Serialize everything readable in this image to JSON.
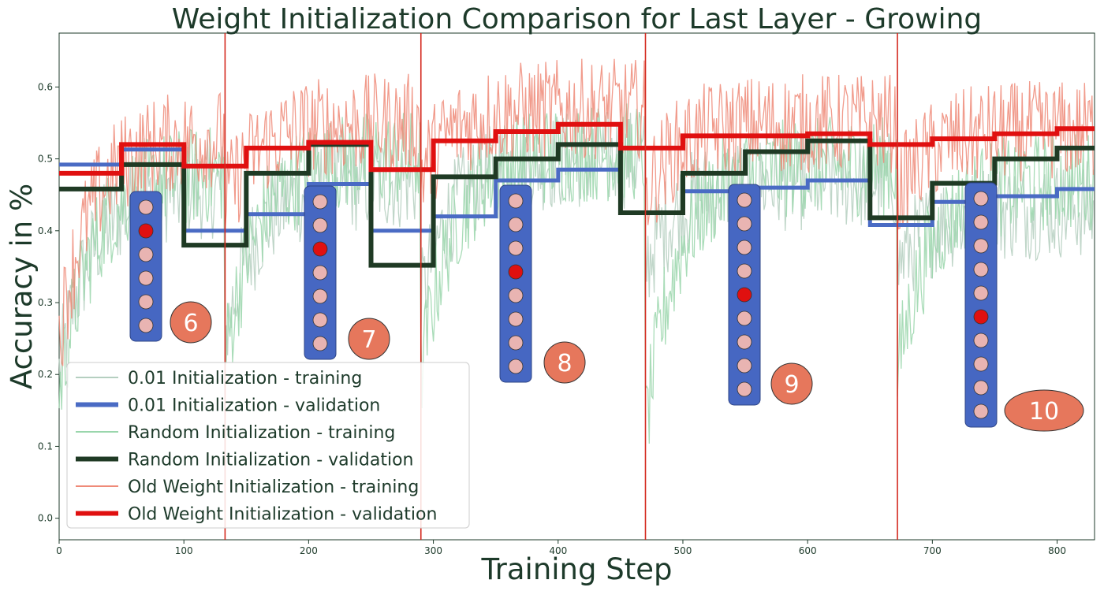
{
  "chart_data": {
    "type": "line",
    "title": "Weight Initialization Comparison for Last Layer - Growing",
    "xlabel": "Training Step",
    "ylabel": "Accuracy in %",
    "xlim": [
      0,
      830
    ],
    "ylim": [
      -0.03,
      0.675
    ],
    "xticks": [
      0,
      100,
      200,
      300,
      400,
      500,
      600,
      700,
      800
    ],
    "yticks": [
      0.0,
      0.1,
      0.2,
      0.3,
      0.4,
      0.5,
      0.6
    ],
    "grid": false,
    "legend_position": "lower-left",
    "growth_events": [
      133,
      290,
      470,
      672
    ],
    "colors": {
      "init001_train": "#b5cfc0",
      "init001_val": "#4a6bc4",
      "random_train": "#9ad6ac",
      "random_val": "#1f3a24",
      "old_train": "#ef8a78",
      "old_val": "#e01010",
      "event_line": "#d42a1f",
      "net_box": "#4667c2",
      "neuron": "#e9b4b2",
      "neuron_active": "#e01010",
      "badge": "#e6775c"
    },
    "series": [
      {
        "name": "0.01 Initialization - training",
        "kind": "training",
        "segments": [
          {
            "start": 0,
            "end": 133,
            "level": 0.46,
            "min": 0.2
          },
          {
            "start": 133,
            "end": 290,
            "level": 0.47,
            "min": 0.25
          },
          {
            "start": 290,
            "end": 470,
            "level": 0.5,
            "min": 0.3
          },
          {
            "start": 470,
            "end": 672,
            "level": 0.47,
            "min": 0.35
          },
          {
            "start": 672,
            "end": 830,
            "level": 0.43,
            "min": 0.35
          }
        ]
      },
      {
        "name": "0.01 Initialization - validation",
        "kind": "validation",
        "x": [
          0,
          50,
          50,
          100,
          100,
          150,
          150,
          200,
          200,
          250,
          250,
          300,
          300,
          350,
          350,
          400,
          400,
          450,
          450,
          500,
          500,
          550,
          550,
          600,
          600,
          650,
          650,
          700,
          700,
          750,
          750,
          800,
          800,
          830
        ],
        "y": [
          0.492,
          0.492,
          0.513,
          0.513,
          0.4,
          0.4,
          0.423,
          0.423,
          0.465,
          0.465,
          0.4,
          0.4,
          0.42,
          0.42,
          0.47,
          0.47,
          0.485,
          0.485,
          0.425,
          0.425,
          0.455,
          0.455,
          0.46,
          0.46,
          0.47,
          0.47,
          0.408,
          0.408,
          0.44,
          0.44,
          0.448,
          0.448,
          0.458,
          0.458
        ]
      },
      {
        "name": "Random Initialization - training",
        "kind": "training",
        "segments": [
          {
            "start": 0,
            "end": 133,
            "level": 0.48,
            "min": 0.17
          },
          {
            "start": 133,
            "end": 290,
            "level": 0.5,
            "min": 0.22
          },
          {
            "start": 290,
            "end": 470,
            "level": 0.51,
            "min": 0.2
          },
          {
            "start": 470,
            "end": 672,
            "level": 0.49,
            "min": 0.12
          },
          {
            "start": 672,
            "end": 830,
            "level": 0.47,
            "min": 0.2
          }
        ]
      },
      {
        "name": "Random Initialization - validation",
        "kind": "validation",
        "x": [
          0,
          50,
          50,
          100,
          100,
          150,
          150,
          200,
          200,
          250,
          250,
          300,
          300,
          350,
          350,
          400,
          400,
          450,
          450,
          500,
          500,
          550,
          550,
          600,
          600,
          650,
          650,
          700,
          700,
          750,
          750,
          800,
          800,
          830
        ],
        "y": [
          0.458,
          0.458,
          0.492,
          0.492,
          0.38,
          0.38,
          0.48,
          0.48,
          0.52,
          0.52,
          0.352,
          0.352,
          0.475,
          0.475,
          0.5,
          0.5,
          0.52,
          0.52,
          0.425,
          0.425,
          0.48,
          0.48,
          0.51,
          0.51,
          0.525,
          0.525,
          0.418,
          0.418,
          0.466,
          0.466,
          0.5,
          0.5,
          0.515,
          0.515
        ]
      },
      {
        "name": "Old Weight Initialization - training",
        "kind": "training",
        "segments": [
          {
            "start": 0,
            "end": 133,
            "level": 0.53,
            "min": 0.25
          },
          {
            "start": 133,
            "end": 290,
            "level": 0.55,
            "min": 0.44
          },
          {
            "start": 290,
            "end": 470,
            "level": 0.57,
            "min": 0.48
          },
          {
            "start": 470,
            "end": 672,
            "level": 0.55,
            "min": 0.45
          },
          {
            "start": 672,
            "end": 830,
            "level": 0.54,
            "min": 0.45
          }
        ]
      },
      {
        "name": "Old Weight Initialization - validation",
        "kind": "validation",
        "x": [
          0,
          50,
          50,
          100,
          100,
          150,
          150,
          200,
          200,
          250,
          250,
          300,
          300,
          350,
          350,
          400,
          400,
          450,
          450,
          500,
          500,
          550,
          550,
          600,
          600,
          650,
          650,
          700,
          700,
          750,
          750,
          800,
          800,
          830
        ],
        "y": [
          0.48,
          0.48,
          0.52,
          0.52,
          0.49,
          0.49,
          0.515,
          0.515,
          0.523,
          0.523,
          0.485,
          0.485,
          0.525,
          0.525,
          0.538,
          0.538,
          0.548,
          0.548,
          0.515,
          0.515,
          0.532,
          0.532,
          0.532,
          0.532,
          0.535,
          0.535,
          0.52,
          0.52,
          0.528,
          0.528,
          0.535,
          0.535,
          0.542,
          0.542
        ]
      }
    ],
    "networks": [
      {
        "label": "6",
        "neurons": 6,
        "active": 1
      },
      {
        "label": "7",
        "neurons": 7,
        "active": 2
      },
      {
        "label": "8",
        "neurons": 8,
        "active": 3
      },
      {
        "label": "9",
        "neurons": 9,
        "active": 4
      },
      {
        "label": "10",
        "neurons": 10,
        "active": 5
      }
    ]
  }
}
